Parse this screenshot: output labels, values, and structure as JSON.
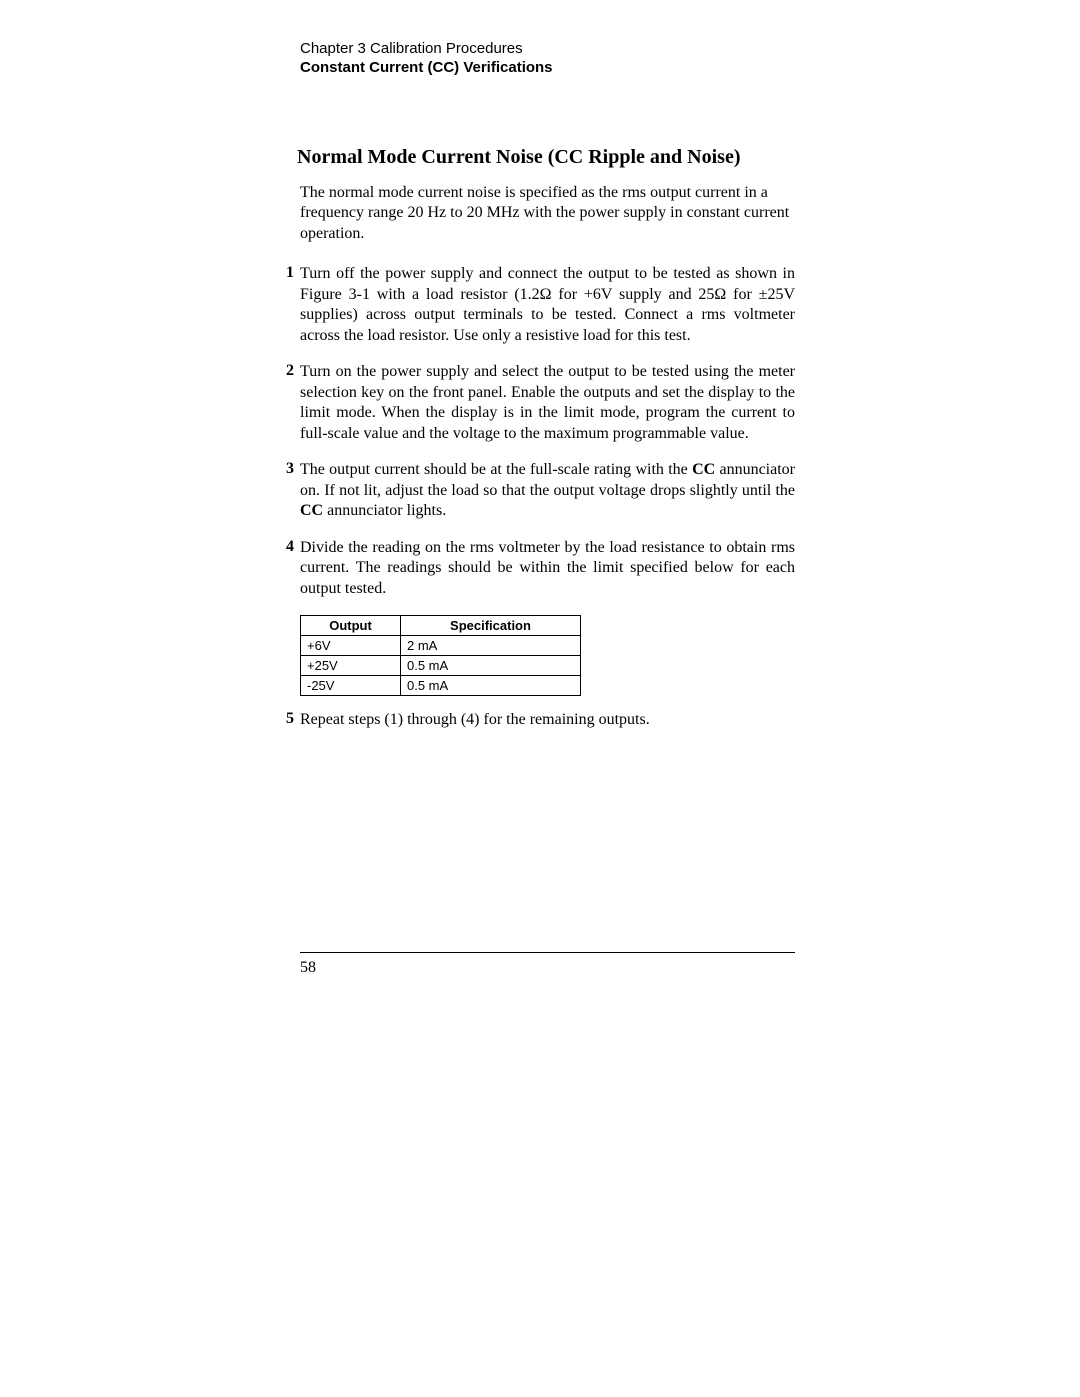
{
  "header": {
    "chapter": "Chapter 3 Calibration Procedures",
    "section": "Constant Current (CC) Verifications"
  },
  "title": "Normal Mode Current Noise (CC Ripple and Noise)",
  "intro": "The normal mode current noise is specified as the rms output current in a frequency range 20 Hz to 20 MHz with the power supply in constant current operation.",
  "steps": {
    "s1": {
      "num": "1",
      "text": "Turn off the power supply and connect the output to be tested as shown in Figure 3-1 with a load resistor (1.2Ω for +6V supply and 25Ω for ±25V supplies) across output terminals to be tested. Connect a rms voltmeter across the load resistor. Use only a resistive load for this test."
    },
    "s2": {
      "num": "2",
      "text": "Turn on the power supply and select the output to be tested using the meter selection key on the front panel. Enable the outputs and set the display to the limit mode. When the display is in the limit mode, program the current to full-scale value and the voltage to the maximum programmable value."
    },
    "s3": {
      "num": "3",
      "text_before": "The output current should be at the full-scale rating with the ",
      "cc1": "CC",
      "text_mid": " annunciator on. If not lit, adjust the load so that the output voltage drops slightly until the ",
      "cc2": "CC",
      "text_after": " annunciator lights."
    },
    "s4": {
      "num": "4",
      "text": "Divide the reading on the rms voltmeter by the load resistance to obtain rms current. The readings should be within the limit specified below for each output tested."
    },
    "s5": {
      "num": "5",
      "text": "Repeat steps (1) through (4) for the remaining outputs."
    }
  },
  "table": {
    "headers": {
      "output": "Output",
      "spec": "Specification"
    },
    "rows": {
      "r0": {
        "output": "+6V",
        "spec": "2 mA"
      },
      "r1": {
        "output": "+25V",
        "spec": "0.5 mA"
      },
      "r2": {
        "output": "-25V",
        "spec": "0.5 mA"
      }
    }
  },
  "page_number": "58"
}
